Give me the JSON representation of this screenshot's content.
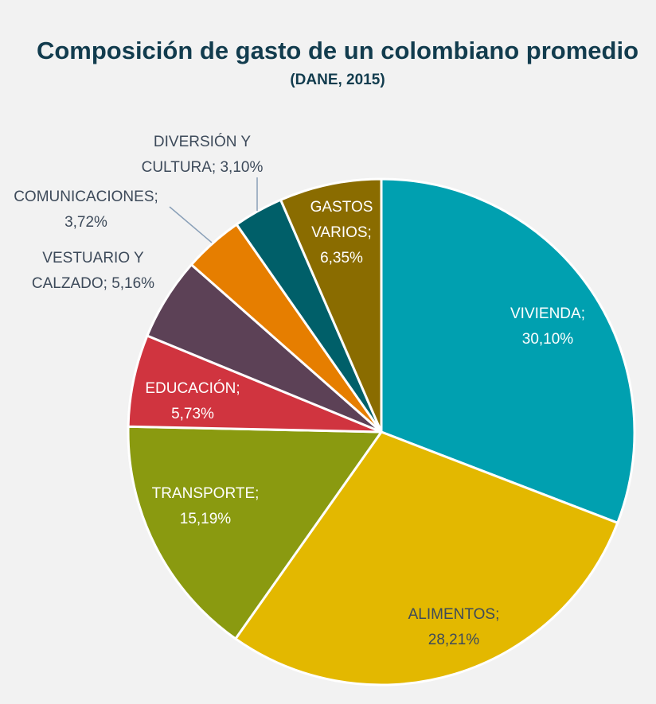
{
  "chart_data": {
    "type": "pie",
    "title": "Composición de gasto de un colombiano promedio",
    "subtitle": "(DANE, 2015)",
    "categories": [
      "VIVIENDA",
      "ALIMENTOS",
      "TRANSPORTE",
      "EDUCACIÓN",
      "VESTUARIO Y CALZADO",
      "COMUNICACIONES",
      "DIVERSIÓN Y CULTURA",
      "GASTOS VARIOS"
    ],
    "values": [
      30.1,
      28.21,
      15.19,
      5.73,
      5.16,
      3.72,
      3.1,
      6.35
    ],
    "unit": "%",
    "colors": [
      "#00a0b0",
      "#e3b800",
      "#8a9a10",
      "#d0343f",
      "#5c4156",
      "#e67e00",
      "#005f69",
      "#8a6c00"
    ],
    "labels": [
      [
        "VIVIENDA;",
        "30,10%"
      ],
      [
        "ALIMENTOS;",
        "28,21%"
      ],
      [
        "TRANSPORTE;",
        "15,19%"
      ],
      [
        "EDUCACIÓN;",
        "5,73%"
      ],
      [
        "VESTUARIO Y",
        "CALZADO; 5,16%"
      ],
      [
        "COMUNICACIONES;",
        "3,72%"
      ],
      [
        "DIVERSIÓN Y",
        "CULTURA; 3,10%"
      ],
      [
        "GASTOS",
        "VARIOS;",
        "6,35%"
      ]
    ],
    "label_colors": [
      "#ffffff",
      "#3d4a5a",
      "#ffffff",
      "#ffffff",
      "#3d4a5a",
      "#3d4a5a",
      "#3d4a5a",
      "#ffffff"
    ],
    "title_color": "#123c4e",
    "legend": "none"
  }
}
